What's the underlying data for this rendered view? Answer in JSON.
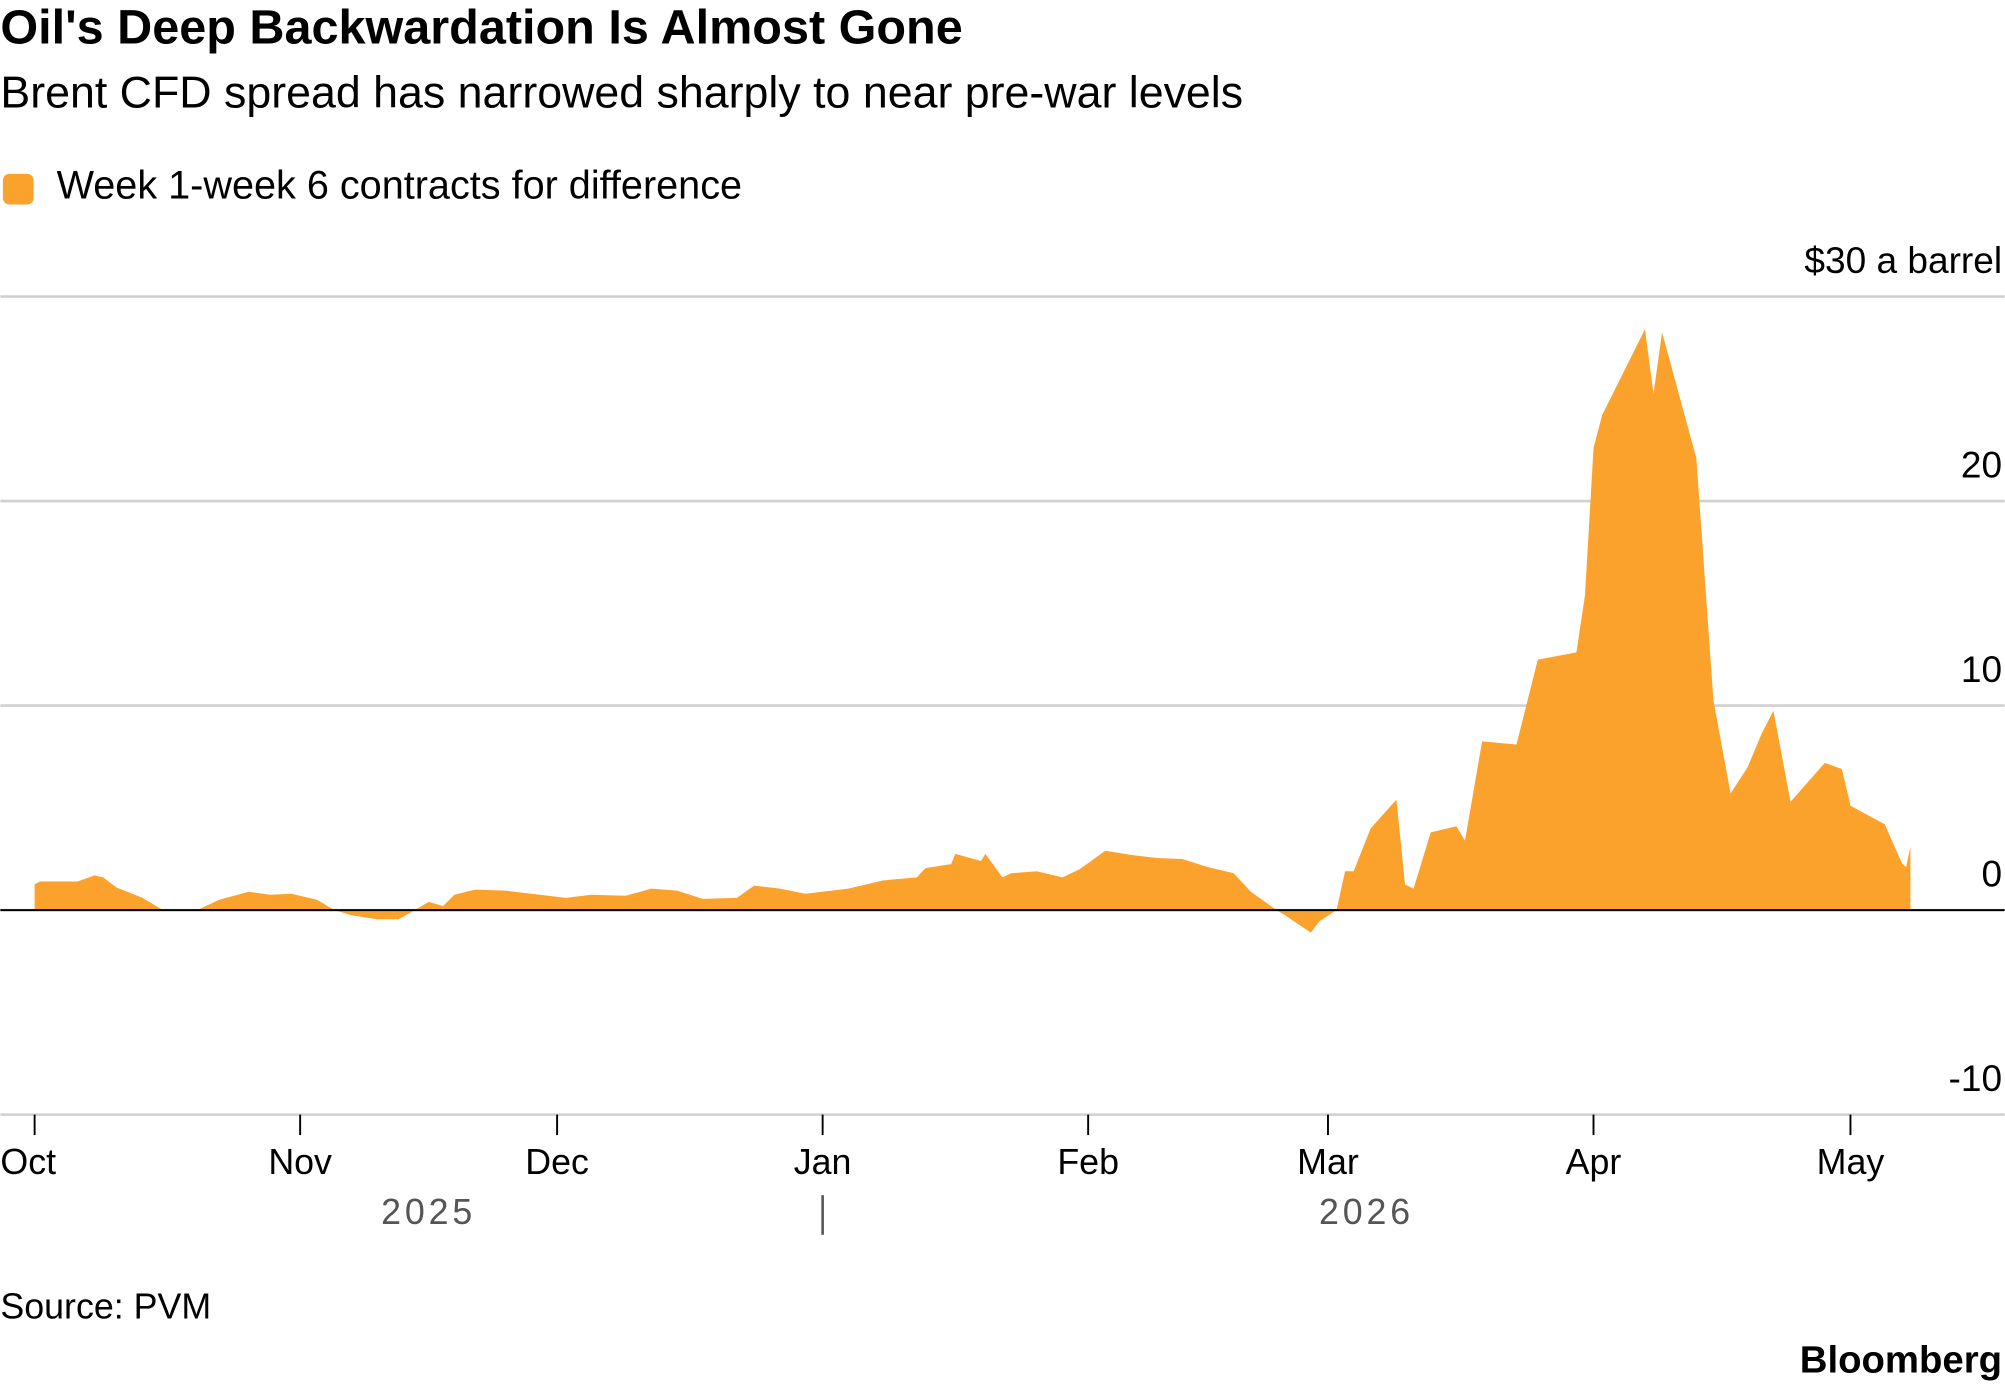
{
  "chart_data": {
    "type": "area",
    "title": "Oil's Deep Backwardation Is Almost Gone",
    "subtitle": "Brent CFD spread has narrowed sharply to near pre-war levels",
    "source": "Source: PVM",
    "brand": "Bloomberg",
    "years": [
      "2025",
      "2026"
    ],
    "x": [
      0,
      0.6,
      2,
      5,
      7,
      8,
      9.6,
      12.6,
      15,
      19,
      21.5,
      25,
      27.5,
      30,
      33,
      35,
      37,
      40,
      42.5,
      44,
      46,
      47.7,
      49,
      51.4,
      55,
      59,
      62,
      65,
      69,
      72,
      75,
      78,
      82,
      84,
      87,
      90,
      95,
      99,
      103,
      104,
      107,
      107.5,
      110.5,
      111,
      113,
      114,
      117,
      120,
      122,
      125,
      128,
      131,
      134,
      137,
      140,
      142,
      145,
      146,
      149,
      150,
      152,
      153,
      154,
      156,
      159,
      160,
      161,
      163,
      166,
      167,
      169,
      173,
      175.5,
      180,
      181,
      182,
      183,
      188,
      189,
      190,
      194,
      196,
      198,
      200,
      201.6,
      203,
      205,
      209,
      211,
      212,
      216,
      218,
      218.5,
      219
    ],
    "series": [
      {
        "name": "Week 1-week 6 contracts for difference",
        "color": "#fba22d",
        "values": [
          1.25,
          1.4,
          1.4,
          1.4,
          1.7,
          1.6,
          1.1,
          0.6,
          0,
          0,
          0.5,
          0.9,
          0.75,
          0.8,
          0.5,
          0,
          -0.25,
          -0.45,
          -0.45,
          -0.1,
          0.4,
          0.2,
          0.75,
          1.0,
          0.95,
          0.75,
          0.6,
          0.75,
          0.7,
          1.05,
          0.95,
          0.55,
          0.6,
          1.2,
          1.05,
          0.8,
          1.05,
          1.45,
          1.6,
          2.05,
          2.25,
          2.75,
          2.4,
          2.75,
          1.6,
          1.8,
          1.9,
          1.6,
          2.0,
          2.9,
          2.7,
          2.55,
          2.5,
          2.1,
          1.8,
          0.9,
          0,
          -0.25,
          -1.1,
          -0.55,
          0,
          1.9,
          1.9,
          4.0,
          5.4,
          1.25,
          1.05,
          3.8,
          4.1,
          3.4,
          8.25,
          8.1,
          12.25,
          12.6,
          15.4,
          22.6,
          24.2,
          28.4,
          25.25,
          28.25,
          22.1,
          10.25,
          5.7,
          7.0,
          8.6,
          9.75,
          5.3,
          7.2,
          6.9,
          5.1,
          4.2,
          2.3,
          2.1,
          3.1
        ]
      }
    ],
    "xlim": [
      -4,
      230
    ],
    "xticks": [
      {
        "value": 0,
        "label": "Oct"
      },
      {
        "value": 31,
        "label": "Nov"
      },
      {
        "value": 61,
        "label": "Dec"
      },
      {
        "value": 92,
        "label": "Jan"
      },
      {
        "value": 123,
        "label": "Feb"
      },
      {
        "value": 151,
        "label": "Mar"
      },
      {
        "value": 182,
        "label": "Apr"
      },
      {
        "value": 212,
        "label": "May"
      }
    ],
    "ylim": [
      -10,
      30
    ],
    "yticks": [
      -10,
      0,
      10,
      20,
      {
        "value": 30,
        "label": "$30 a barrel"
      }
    ],
    "grid": true
  }
}
